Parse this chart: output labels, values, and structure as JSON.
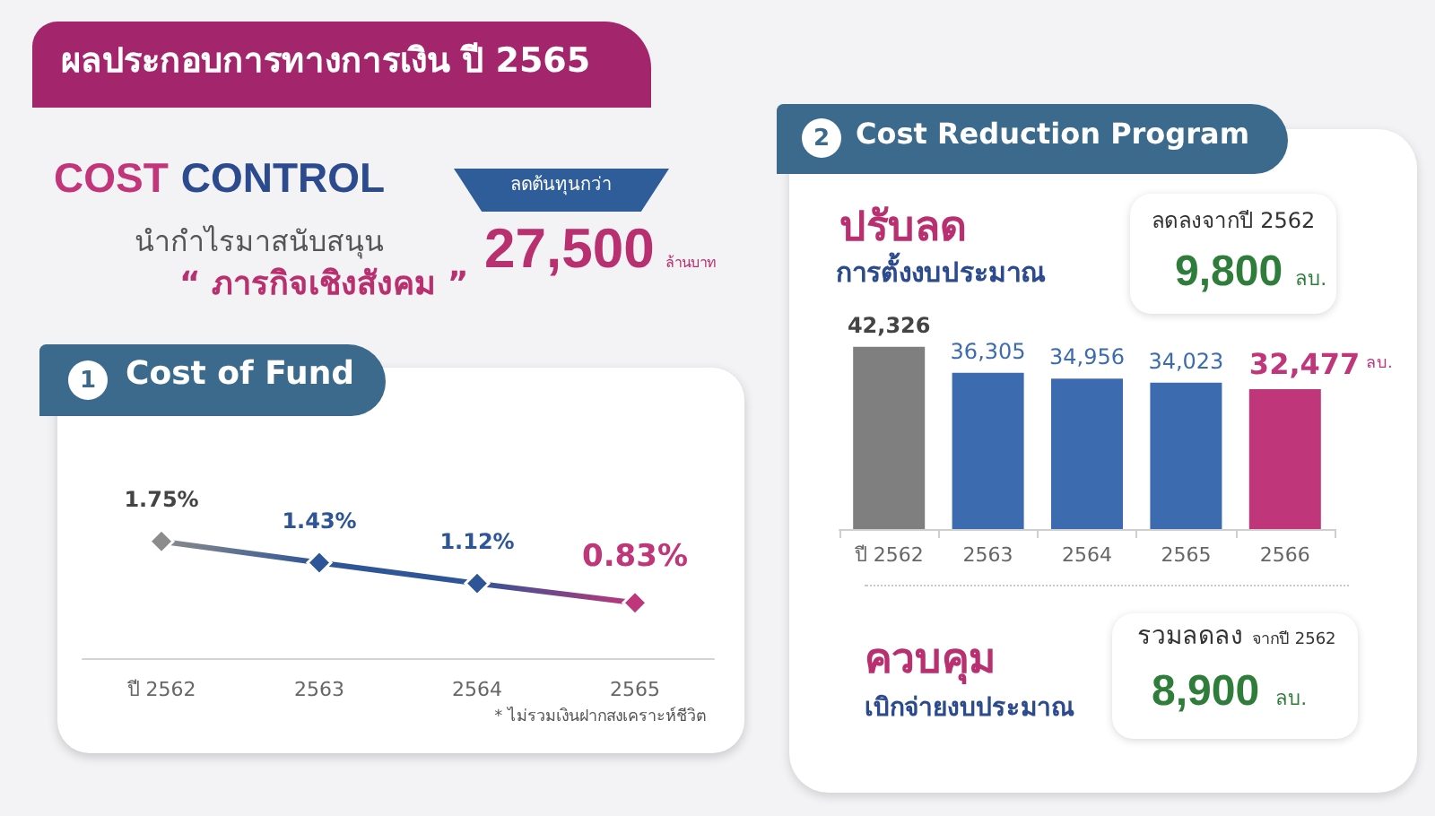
{
  "chart_data": [
    {
      "type": "other",
      "title": "ผลประกอบการทางการเงิน ปี 2565",
      "annotations": [
        "COST",
        "CONTROL",
        "นำกำไรมาสนับสนุน",
        "“ ภารกิจเชิงสังคม ”",
        "ลดต้นทุนกว่า",
        "27,500",
        "ล้านบาท"
      ]
    },
    {
      "type": "line",
      "title": "Cost of Fund",
      "annotations": [
        "1",
        "* ไม่รวมเงินฝากสงเคราะห์ชีวิต"
      ],
      "categories": [
        "ปี 2562",
        "2563",
        "2564",
        "2565"
      ],
      "values": [
        1.75,
        1.43,
        1.12,
        0.83
      ],
      "colors": [
        "#8c8c8c",
        "#2e5597",
        "#2e5597",
        "#c0367a"
      ],
      "value_labels": [
        "1.75%",
        "1.43%",
        "1.12%",
        "0.83%"
      ],
      "marker": "diamond"
    },
    {
      "type": "bar",
      "title": "Cost Reduction Program",
      "annotations": [
        "2",
        "ปรับลด",
        "การตั้งงบประมาณ",
        "ลดลงจากปี 2562",
        "9,800",
        "ลบ.",
        "ควบคุม",
        "เบิกจ่ายงบประมาณ",
        "รวมลดลง",
        "จากปี 2562",
        "8,900",
        "ลบ."
      ],
      "categories": [
        "ปี 2562",
        "2563",
        "2564",
        "2565",
        "2566"
      ],
      "values": [
        42326,
        36305,
        34956,
        34023,
        32477
      ],
      "colors": [
        "#7f7f7f",
        "#3d6bb0",
        "#3d6bb0",
        "#3d6bb0",
        "#c0367a"
      ],
      "value_labels": [
        "42,326",
        "36,305",
        "34,956",
        "34,023",
        "32,477 ลบ."
      ]
    }
  ]
}
